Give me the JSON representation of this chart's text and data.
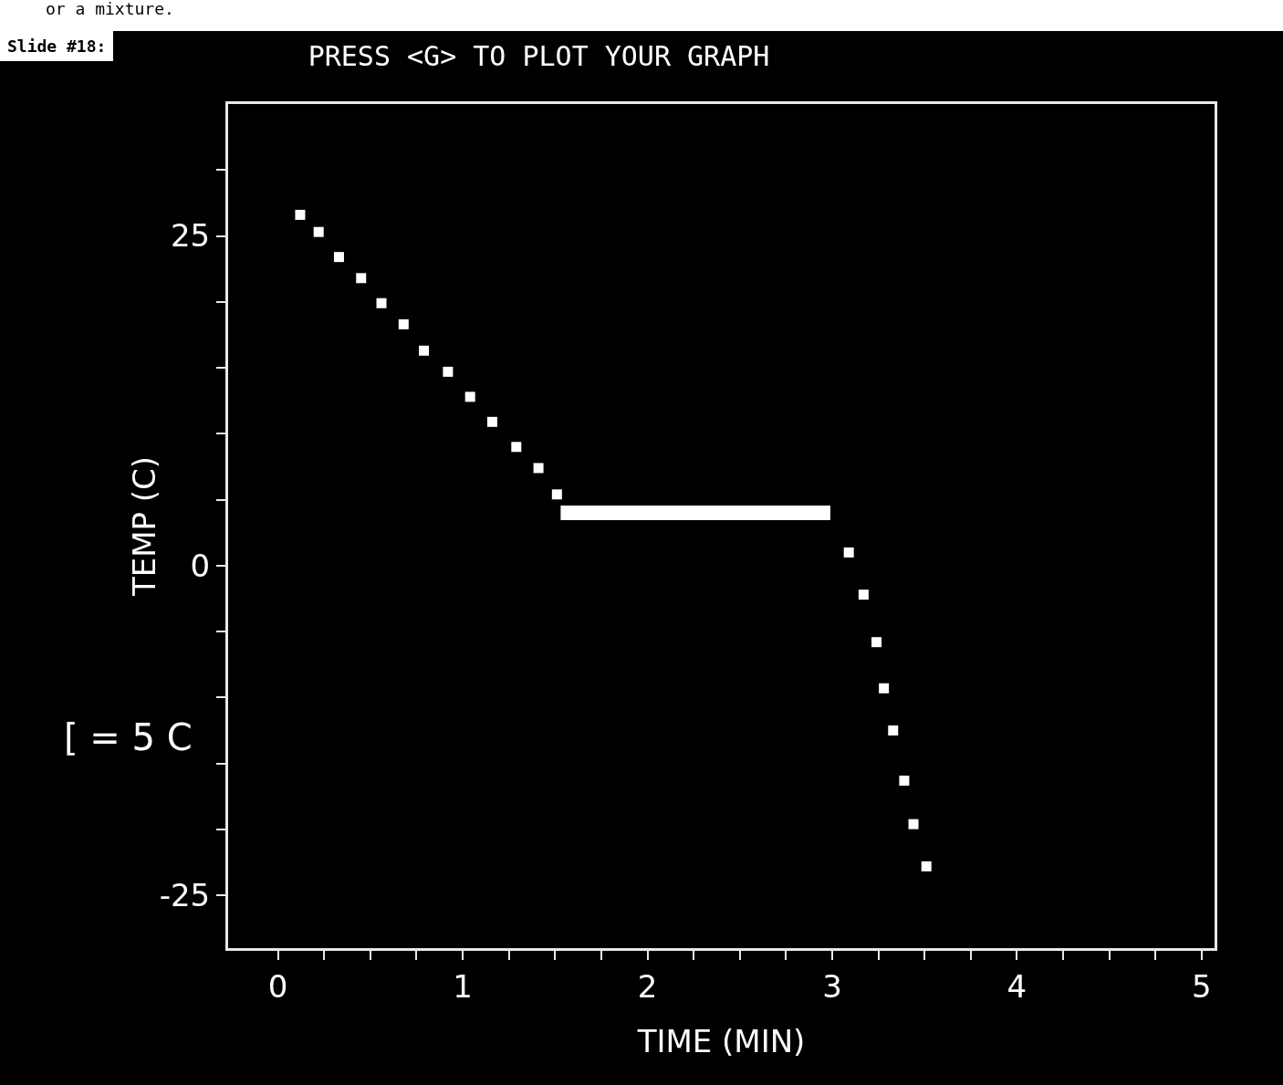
{
  "chart_data": {
    "type": "scatter",
    "title": "PRESS <G> TO PLOT YOUR GRAPH",
    "xlabel": "TIME (MIN)",
    "ylabel": "TEMP (C)",
    "annotations": [
      "or a mixture.",
      "Slide #18:",
      "[ = 5 C"
    ],
    "xlim": [
      -0.27,
      5.07
    ],
    "ylim": [
      -29,
      35
    ],
    "xticks": [
      0,
      {
        "value": 0.25,
        "label": null
      },
      {
        "value": 0.5,
        "label": null
      },
      {
        "value": 0.75,
        "label": null
      },
      1,
      {
        "value": 1.25,
        "label": null
      },
      {
        "value": 1.5,
        "label": null
      },
      {
        "value": 1.75,
        "label": null
      },
      2,
      {
        "value": 2.25,
        "label": null
      },
      {
        "value": 2.5,
        "label": null
      },
      {
        "value": 2.75,
        "label": null
      },
      3,
      {
        "value": 3.25,
        "label": null
      },
      {
        "value": 3.5,
        "label": null
      },
      {
        "value": 3.75,
        "label": null
      },
      4,
      {
        "value": 4.25,
        "label": null
      },
      {
        "value": 4.5,
        "label": null
      },
      {
        "value": 4.75,
        "label": null
      },
      5
    ],
    "yticks": [
      -25,
      {
        "value": -20,
        "label": null
      },
      {
        "value": -15,
        "label": null
      },
      {
        "value": -10,
        "label": null
      },
      {
        "value": -5,
        "label": null
      },
      0,
      {
        "value": 5,
        "label": null
      },
      {
        "value": 10,
        "label": null
      },
      {
        "value": 15,
        "label": null
      },
      {
        "value": 20,
        "label": null
      },
      25,
      {
        "value": 30,
        "label": null
      }
    ],
    "grid": false,
    "series": [
      {
        "type": "scatter",
        "marker": "square",
        "color": "#ffffff",
        "x": [
          0.12,
          0.22,
          0.33,
          0.45,
          0.56,
          0.68,
          0.79,
          0.92,
          1.04,
          1.16,
          1.29,
          1.41,
          1.51
        ],
        "values": [
          26.6,
          25.3,
          23.4,
          21.8,
          19.9,
          18.3,
          16.3,
          14.7,
          12.8,
          10.9,
          9.0,
          7.4,
          5.4
        ]
      },
      {
        "type": "line",
        "line_style": "solid",
        "color": "#ffffff",
        "x": [
          1.53,
          2.99
        ],
        "values": [
          4.0,
          4.0
        ]
      },
      {
        "type": "scatter",
        "marker": "square",
        "color": "#ffffff",
        "x": [
          3.09,
          3.17,
          3.24,
          3.28,
          3.33,
          3.39,
          3.44,
          3.51
        ],
        "values": [
          1.0,
          -2.2,
          -5.8,
          -9.3,
          -12.5,
          -16.3,
          -19.6,
          -22.8
        ]
      }
    ]
  }
}
